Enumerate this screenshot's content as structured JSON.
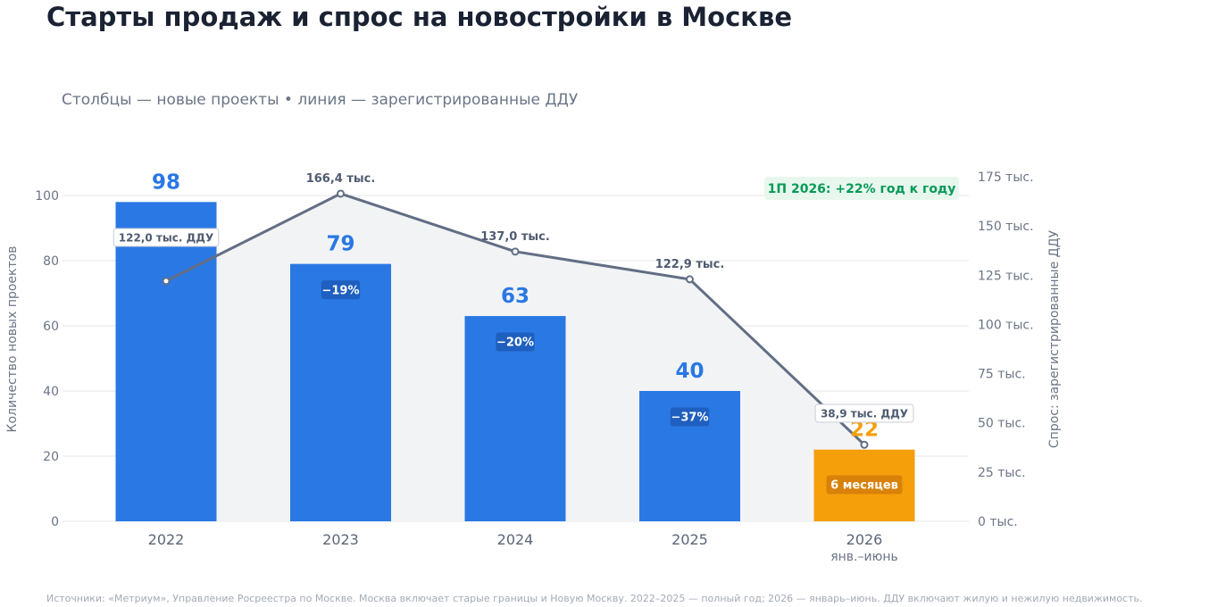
{
  "title": "Старты продаж и спрос на новостройки в Москве",
  "subtitle": "Столбцы — новые проекты • линия — зарегистрированные ДДУ",
  "source": "Источники: «Метриум», Управление Росреестра по Москве. Москва включает старые границы и Новую Москву. 2022–2025 — полный год; 2026 — январь–июнь. ДДУ включают жилую и нежилую недвижимость.",
  "colors": {
    "bar": "#2a78e4",
    "bar_highlight": "#f59f0b",
    "line": "#626e84",
    "area": "#f1f3f5",
    "badge_green": "#059a57"
  },
  "chart_data": {
    "type": "bar",
    "categories": [
      "2022",
      "2023",
      "2024",
      "2025",
      "2026"
    ],
    "category_sublabels": [
      "",
      "",
      "",
      "",
      "янв.–июнь"
    ],
    "series": [
      {
        "name": "Количество новых проектов",
        "axis": "left",
        "type": "bar",
        "values": [
          98,
          79,
          63,
          40,
          22
        ]
      },
      {
        "name": "Спрос: зарегистрированные ДДУ",
        "axis": "right",
        "type": "line",
        "values": [
          122.0,
          166.4,
          137.0,
          122.9,
          38.9
        ]
      }
    ],
    "ylabel": "Количество новых проектов",
    "ylabel_right": "Спрос: зарегистрированные ДДУ",
    "ylim": [
      0,
      100
    ],
    "ylim_right": [
      0,
      175
    ],
    "y_ticks": [
      "0",
      "20",
      "40",
      "60",
      "80",
      "100"
    ],
    "y_ticks_right": [
      "0 тыс.",
      "25 тыс.",
      "50 тыс.",
      "75 тыс.",
      "100 тыс.",
      "125 тыс.",
      "150 тыс.",
      "175 тыс."
    ],
    "bar_value_labels": [
      "98",
      "79",
      "63",
      "40",
      "22"
    ],
    "bar_inner_labels": [
      "122,0 тыс. ДДУ",
      "−19%",
      "−20%",
      "−37%",
      "6 месяцев"
    ],
    "line_value_labels": [
      "",
      "166,4 тыс.",
      "137,0 тыс.",
      "122,9 тыс.",
      "38,9 тыс. ДДУ"
    ],
    "annotation": "1П 2026: +22% год к году",
    "grid": true,
    "highlight_index": 4
  }
}
